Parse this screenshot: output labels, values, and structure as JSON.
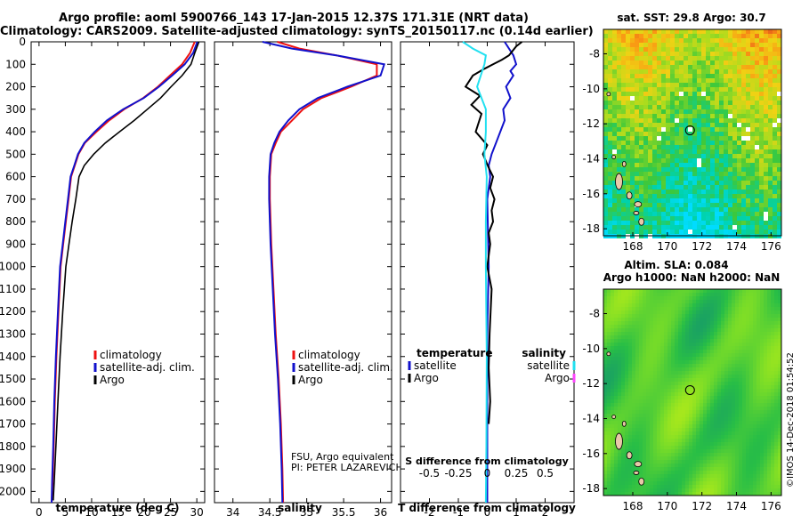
{
  "header": {
    "line1": "Argo profile: aoml 5900766_143 17-Jan-2015 12.37S 171.31E (NRT data)",
    "line2": "Climatology: CARS2009. Satellite-adjusted climatology: synTS_20150117.nc (0.14d earlier)"
  },
  "credit": "©IMOS 14-Dec-2018 01:54:52",
  "colors": {
    "climatology": "#ee1111",
    "satellite": "#1111cc",
    "argo": "#000000",
    "sal_satellite": "#22e0f0",
    "sal_argo": "#ff44ff"
  },
  "chart_data": [
    {
      "id": "temperature",
      "type": "line",
      "xlabel": "temperature (deg C)",
      "ylabel": "",
      "xlim": [
        -1.5,
        31.5
      ],
      "ylim": [
        2050,
        0
      ],
      "xticks": [
        0,
        5,
        10,
        15,
        20,
        25,
        30
      ],
      "yticks": [
        0,
        100,
        200,
        300,
        400,
        500,
        600,
        700,
        800,
        900,
        1000,
        1100,
        1200,
        1300,
        1400,
        1500,
        1600,
        1700,
        1800,
        1900,
        2000
      ],
      "legend": [
        "climatology",
        "satellite-adj. clim.",
        "Argo"
      ],
      "series": [
        {
          "name": "climatology",
          "color_key": "climatology",
          "x": [
            29.6,
            28.7,
            27.2,
            24.9,
            22.6,
            19.8,
            16.2,
            13.3,
            10.9,
            8.7,
            7.5,
            6.8,
            6.1,
            5.6,
            5.1,
            4.6,
            4.1,
            3.7,
            3.3,
            3.0,
            2.8,
            2.6,
            2.45,
            2.4
          ],
          "y": [
            0,
            50,
            100,
            150,
            200,
            250,
            300,
            350,
            400,
            450,
            500,
            550,
            600,
            700,
            800,
            900,
            1000,
            1200,
            1400,
            1600,
            1800,
            1950,
            2030,
            2050
          ]
        },
        {
          "name": "satellite-adj. clim.",
          "color_key": "satellite",
          "x": [
            30.1,
            29.3,
            27.7,
            25.3,
            22.8,
            19.9,
            16.0,
            12.9,
            10.6,
            8.6,
            7.4,
            6.7,
            6.0,
            5.5,
            5.0,
            4.5,
            4.0,
            3.6,
            3.2,
            2.9,
            2.7,
            2.5,
            2.4
          ],
          "y": [
            0,
            50,
            100,
            150,
            200,
            250,
            300,
            350,
            400,
            450,
            500,
            550,
            600,
            700,
            800,
            900,
            1000,
            1200,
            1400,
            1600,
            1800,
            1950,
            2050
          ]
        },
        {
          "name": "Argo",
          "color_key": "argo",
          "x": [
            30.4,
            29.6,
            28.9,
            27.2,
            25.1,
            23.1,
            20.6,
            18.1,
            15.3,
            12.6,
            10.4,
            8.6,
            7.6,
            7.0,
            6.3,
            5.7,
            5.1,
            4.5,
            4.0,
            3.6,
            3.2,
            2.9,
            2.7
          ],
          "y": [
            0,
            50,
            100,
            150,
            200,
            250,
            300,
            350,
            400,
            450,
            500,
            550,
            600,
            700,
            800,
            900,
            1000,
            1200,
            1400,
            1600,
            1800,
            1950,
            2040
          ]
        }
      ]
    },
    {
      "id": "salinity",
      "type": "line",
      "xlabel": "salinity",
      "ylabel": "",
      "xlim": [
        33.75,
        36.15
      ],
      "ylim": [
        2050,
        0
      ],
      "xticks": [
        34,
        34.5,
        35,
        35.5,
        36
      ],
      "xtick_labels": [
        "34",
        "34.5",
        "35",
        "35.5",
        "36"
      ],
      "legend": [
        "climatology",
        "satellite-adj. clim.",
        "Argo"
      ],
      "annotations": [
        "FSU, Argo equivalent",
        "PI: PETER LAZAREVICH"
      ],
      "series": [
        {
          "name": "climatology",
          "color_key": "climatology",
          "x": [
            34.6,
            34.9,
            35.4,
            35.95,
            35.95,
            35.6,
            35.2,
            34.95,
            34.8,
            34.65,
            34.58,
            34.52,
            34.5,
            34.5,
            34.52,
            34.55,
            34.58,
            34.62,
            34.65,
            34.67,
            34.68
          ],
          "y": [
            0,
            30,
            60,
            100,
            150,
            200,
            250,
            300,
            350,
            400,
            450,
            500,
            600,
            700,
            900,
            1100,
            1300,
            1500,
            1700,
            1900,
            2050
          ]
        },
        {
          "name": "satellite-adj. clim.",
          "color_key": "satellite",
          "x": [
            34.4,
            34.8,
            35.4,
            36.05,
            36.0,
            35.55,
            35.15,
            34.9,
            34.75,
            34.63,
            34.56,
            34.51,
            34.49,
            34.49,
            34.51,
            34.54,
            34.57,
            34.61,
            34.64,
            34.66,
            34.67
          ],
          "y": [
            0,
            30,
            60,
            100,
            150,
            200,
            250,
            300,
            350,
            400,
            450,
            500,
            600,
            700,
            900,
            1100,
            1300,
            1500,
            1700,
            1900,
            2050
          ]
        }
      ]
    },
    {
      "id": "differences",
      "type": "line",
      "xlabel": "T difference from climatology",
      "x2label": "S difference from climatology",
      "xlim": [
        -3.0,
        3.0
      ],
      "ylim": [
        2050,
        0
      ],
      "xticks": [
        -2,
        -1,
        0,
        1,
        2
      ],
      "x2ticks": [
        -0.5,
        -0.25,
        0,
        0.25,
        0.5
      ],
      "x2tick_labels": [
        "-0.5",
        "-0.25",
        "0",
        "0.25",
        "0.5"
      ],
      "legend_left_title": "temperature",
      "legend_right_title": "salinity",
      "legend_left": [
        "satellite",
        "Argo"
      ],
      "legend_right": [
        "satellite",
        "Argo"
      ],
      "series": [
        {
          "name": "satellite",
          "color_key": "satellite",
          "x": [
            0.6,
            0.9,
            1.0,
            0.8,
            0.9,
            0.65,
            0.8,
            0.55,
            0.6,
            0.3,
            0.15,
            0.05,
            0.1,
            0.0,
            0.05,
            0.0,
            0.0,
            0.0
          ],
          "y": [
            0,
            60,
            100,
            130,
            150,
            200,
            250,
            300,
            350,
            450,
            500,
            550,
            600,
            700,
            1000,
            1300,
            1700,
            2050
          ]
        },
        {
          "name": "Argo",
          "color_key": "argo",
          "x": [
            1.2,
            1.0,
            0.75,
            0.5,
            0.2,
            -0.1,
            -0.5,
            -0.75,
            -0.25,
            -0.55,
            -0.2,
            -0.4,
            0.0,
            -0.15,
            0.05,
            0.2,
            0.1,
            0.25,
            0.15,
            0.2,
            0.05,
            0.1,
            0.0,
            0.15,
            0.08,
            0.05,
            0.1,
            0.05
          ],
          "y": [
            0,
            20,
            60,
            80,
            100,
            120,
            150,
            200,
            240,
            280,
            320,
            400,
            460,
            500,
            560,
            600,
            650,
            700,
            750,
            800,
            850,
            900,
            1000,
            1100,
            1300,
            1450,
            1600,
            1700
          ]
        },
        {
          "name": "S satellite",
          "color_key": "sal_satellite",
          "x": [
            -0.85,
            -0.5,
            -0.05,
            -0.1,
            -0.35,
            -0.05,
            -0.05,
            -0.1,
            -0.02,
            -0.05,
            -0.05,
            -0.02,
            -0.03,
            -0.05
          ],
          "y": [
            0,
            30,
            60,
            100,
            200,
            300,
            400,
            500,
            600,
            800,
            1000,
            1400,
            1800,
            2050
          ]
        }
      ]
    },
    {
      "id": "map-sst",
      "type": "heatmap",
      "title": "sat. SST: 29.8 Argo: 30.7",
      "xlim": [
        166.3,
        176.6
      ],
      "ylim": [
        -18.4,
        -6.6
      ],
      "xticks": [
        168,
        170,
        172,
        174,
        176
      ],
      "yticks": [
        -8,
        -10,
        -12,
        -14,
        -16,
        -18
      ],
      "marker": {
        "lon": 171.31,
        "lat": -12.37
      }
    },
    {
      "id": "map-sla",
      "type": "heatmap",
      "title": "Altim. SLA: 0.084",
      "subtitle": "Argo h1000: NaN h2000: NaN",
      "xlim": [
        166.3,
        176.6
      ],
      "ylim": [
        -18.4,
        -6.6
      ],
      "xticks": [
        168,
        170,
        172,
        174,
        176
      ],
      "yticks": [
        -8,
        -10,
        -12,
        -14,
        -16,
        -18
      ],
      "marker": {
        "lon": 171.31,
        "lat": -12.37
      }
    }
  ]
}
